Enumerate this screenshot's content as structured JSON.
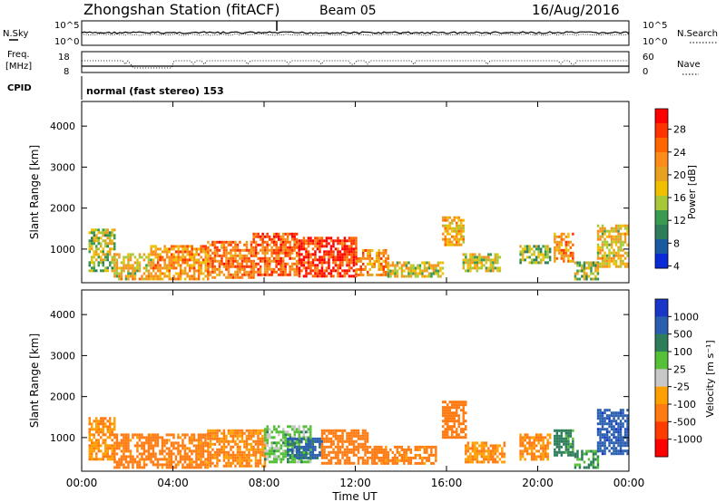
{
  "header": {
    "station": "Zhongshan Station (fitACF)",
    "beam": "Beam 05",
    "date": "16/Aug/2016"
  },
  "top_panels": {
    "nsky_label": "N.Sky",
    "nsearch_label": "N.Search",
    "freq_label": "Freq.",
    "freq_unit": "[MHz]",
    "nave_label": "Nave",
    "cpid_label": "CPID",
    "cpid_text": "normal (fast stereo) 153",
    "noise_ticks_left": [
      "10^5",
      "10^0"
    ],
    "noise_ticks_right": [
      "10^5",
      "10^0"
    ],
    "freq_ticks_left": [
      "18",
      "8"
    ],
    "freq_ticks_right": [
      "60",
      "0"
    ]
  },
  "power_colorbar": {
    "label": "Power [dB]",
    "ticks": [
      "28",
      "24",
      "20",
      "16",
      "12",
      "8",
      "4"
    ],
    "colors": [
      "#ff0000",
      "#ff3300",
      "#ff6600",
      "#ff8c1a",
      "#e8a020",
      "#f0c000",
      "#a8c838",
      "#3a9a52",
      "#2e7d5a",
      "#1a5aa0",
      "#0a2ad8"
    ]
  },
  "velocity_colorbar": {
    "label": "Velocity [m s⁻¹]",
    "ticks": [
      "1000",
      "500",
      "100",
      "25",
      "-25",
      "-100",
      "-500",
      "-1000"
    ],
    "colors": [
      "#1a36c8",
      "#2a5fb0",
      "#2e7d5a",
      "#55c038",
      "#c8c8c8",
      "#ffa000",
      "#ff7a10",
      "#ff3c00",
      "#ff0000"
    ]
  },
  "colors": {
    "ground_scatter": "#909090"
  },
  "chart_data": [
    {
      "type": "heatmap",
      "title": "Power",
      "xlabel": "",
      "ylabel": "Slant Range [km]",
      "xlim": [
        0,
        24
      ],
      "ylim": [
        180,
        4600
      ],
      "yticks": [
        "4000",
        "3000",
        "2000",
        "1000"
      ],
      "scatter_regions": [
        {
          "t": [
            0.3,
            1.4
          ],
          "r": [
            500,
            1500
          ],
          "level": 12
        },
        {
          "t": [
            1.4,
            3.0
          ],
          "r": [
            300,
            900
          ],
          "level": 16
        },
        {
          "t": [
            3.0,
            5.5
          ],
          "r": [
            300,
            1100
          ],
          "level": 20
        },
        {
          "t": [
            5.5,
            7.5
          ],
          "r": [
            300,
            1200
          ],
          "level": 22
        },
        {
          "t": [
            7.5,
            9.5
          ],
          "r": [
            350,
            1400
          ],
          "level": 24
        },
        {
          "t": [
            9.5,
            12.0
          ],
          "r": [
            350,
            1300
          ],
          "level": 28
        },
        {
          "t": [
            12.0,
            13.4
          ],
          "r": [
            350,
            1000
          ],
          "level": 20
        },
        {
          "t": [
            13.4,
            15.8
          ],
          "r": [
            350,
            700
          ],
          "level": 14
        },
        {
          "t": [
            15.8,
            16.7
          ],
          "r": [
            1100,
            1800
          ],
          "level": 18
        },
        {
          "t": [
            16.7,
            18.3
          ],
          "r": [
            500,
            900
          ],
          "level": 14
        },
        {
          "t": [
            19.2,
            20.5
          ],
          "r": [
            700,
            1100
          ],
          "level": 10
        },
        {
          "t": [
            20.7,
            21.5
          ],
          "r": [
            700,
            1400
          ],
          "level": 20
        },
        {
          "t": [
            21.6,
            22.6
          ],
          "r": [
            300,
            700
          ],
          "level": 12
        },
        {
          "t": [
            22.6,
            23.9
          ],
          "r": [
            600,
            1600
          ],
          "level": 16
        }
      ]
    },
    {
      "type": "heatmap",
      "title": "Velocity",
      "xlabel": "Time UT",
      "ylabel": "Slant Range [km]",
      "xlim": [
        0,
        24
      ],
      "ylim": [
        180,
        4600
      ],
      "xticks": [
        "00:00",
        "04:00",
        "08:00",
        "12:00",
        "16:00",
        "20:00",
        "00:00"
      ],
      "yticks": [
        "4000",
        "3000",
        "2000",
        "1000"
      ],
      "scatter_regions": [
        {
          "t": [
            0.3,
            1.4
          ],
          "r": [
            500,
            1500
          ],
          "v": -100
        },
        {
          "t": [
            1.4,
            5.5
          ],
          "r": [
            300,
            1100
          ],
          "v": -150
        },
        {
          "t": [
            5.5,
            8.0
          ],
          "r": [
            300,
            1200
          ],
          "v": -120
        },
        {
          "t": [
            8.0,
            10.0
          ],
          "r": [
            400,
            1300
          ],
          "v": 50
        },
        {
          "t": [
            9.0,
            10.5
          ],
          "r": [
            500,
            1000
          ],
          "v": 600
        },
        {
          "t": [
            10.5,
            12.5
          ],
          "r": [
            350,
            1200
          ],
          "v": -300
        },
        {
          "t": [
            12.5,
            15.5
          ],
          "r": [
            350,
            800
          ],
          "v": -150
        },
        {
          "t": [
            15.8,
            16.8
          ],
          "r": [
            1000,
            1900
          ],
          "v": -200
        },
        {
          "t": [
            16.8,
            18.5
          ],
          "r": [
            400,
            900
          ],
          "v": -100
        },
        {
          "t": [
            19.2,
            20.5
          ],
          "r": [
            500,
            1100
          ],
          "v": -100
        },
        {
          "t": [
            20.7,
            21.5
          ],
          "r": [
            600,
            1200
          ],
          "v": 150
        },
        {
          "t": [
            21.6,
            22.6
          ],
          "r": [
            300,
            700
          ],
          "v": 120
        },
        {
          "t": [
            22.6,
            23.9
          ],
          "r": [
            600,
            1700
          ],
          "v": 800
        }
      ]
    }
  ]
}
